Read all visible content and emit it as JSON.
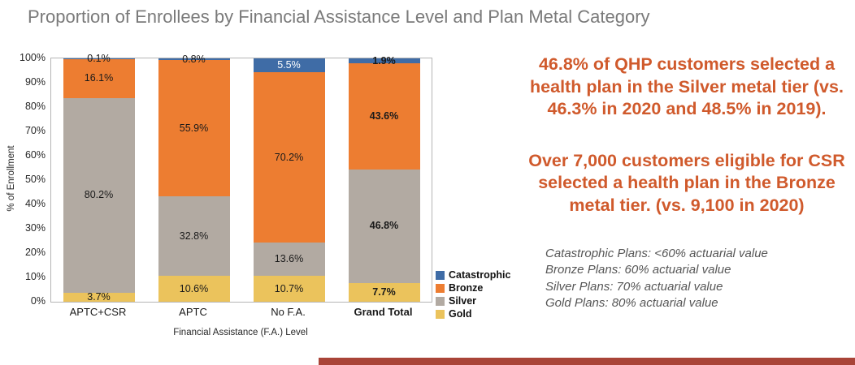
{
  "page": {
    "title": "Proportion of Enrollees by Financial Assistance Level and Plan Metal Category"
  },
  "chart_data": {
    "type": "bar",
    "stacked": true,
    "percent": true,
    "title": "Proportion of Enrollees by Financial Assistance Level and Plan Metal Category",
    "xlabel": "Financial Assistance (F.A.) Level",
    "ylabel": "% of Enrollment",
    "ylim": [
      0,
      100
    ],
    "y_ticks": [
      "100%",
      "90%",
      "80%",
      "70%",
      "60%",
      "50%",
      "40%",
      "30%",
      "20%",
      "10%",
      "0%"
    ],
    "categories": [
      "APTC+CSR",
      "APTC",
      "No F.A.",
      "Grand Total"
    ],
    "emphasis_category_index": 3,
    "series": [
      {
        "name": "Gold",
        "color": "#ebc35c",
        "values": [
          3.7,
          10.6,
          10.7,
          7.7
        ]
      },
      {
        "name": "Silver",
        "color": "#b2aaa2",
        "values": [
          80.2,
          32.8,
          13.6,
          46.8
        ]
      },
      {
        "name": "Bronze",
        "color": "#ed7d31",
        "values": [
          16.1,
          55.9,
          70.2,
          43.6
        ]
      },
      {
        "name": "Catastrophic",
        "color": "#3f6ca6",
        "values": [
          0.1,
          0.8,
          5.5,
          1.9
        ],
        "label_colors": [
          "#1a1a1a",
          "#1a1a1a",
          "#ffffff",
          "#1a1a1a"
        ]
      }
    ],
    "legend": [
      "Catastrophic",
      "Bronze",
      "Silver",
      "Gold"
    ],
    "legend_position": "right-bottom",
    "grid": false
  },
  "annotations": {
    "silver_note": "46.8% of QHP customers selected a health plan in the Silver metal tier (vs. 46.3% in 2020 and 48.5% in 2019).",
    "bronze_note": "Over 7,000 customers eligible for CSR selected a health plan in the Bronze metal tier. (vs. 9,100 in 2020)"
  },
  "footnotes": [
    "Catastrophic Plans: <60% actuarial value",
    "Bronze Plans: 60% actuarial value",
    "Silver Plans: 70% actuarial value",
    "Gold Plans: 80% actuarial value"
  ],
  "colors": {
    "title_text": "#7a7a7a",
    "annotation_text": "#d05a2c",
    "footnote_text": "#565656",
    "bottom_bar": "#a94438",
    "data_label": "#1a1a1a"
  }
}
